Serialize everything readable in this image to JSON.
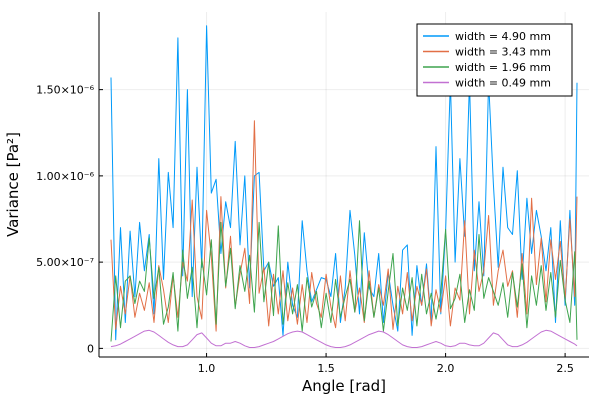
{
  "chart_data": {
    "type": "line",
    "xlabel": "Angle [rad]",
    "ylabel": "Variance [Pa²]",
    "xlim": [
      0.55,
      2.6
    ],
    "ylim": [
      -5e-08,
      1.95e-06
    ],
    "xticks": [
      {
        "value": 1.0,
        "label": "1.0"
      },
      {
        "value": 1.5,
        "label": "1.5"
      },
      {
        "value": 2.0,
        "label": "2.0"
      },
      {
        "value": 2.5,
        "label": "2.5"
      }
    ],
    "yticks": [
      {
        "value": 0,
        "label": "0"
      },
      {
        "value": 5e-07,
        "label": "5.00×10⁻⁷"
      },
      {
        "value": 1e-06,
        "label": "1.00×10⁻⁶"
      },
      {
        "value": 1.5e-06,
        "label": "1.50×10⁻⁶"
      }
    ],
    "grid": true,
    "legend_position": "top-right",
    "x": [
      0.6,
      0.62,
      0.64,
      0.66,
      0.68,
      0.7,
      0.72,
      0.74,
      0.76,
      0.78,
      0.8,
      0.82,
      0.84,
      0.86,
      0.88,
      0.9,
      0.92,
      0.94,
      0.96,
      0.98,
      1.0,
      1.02,
      1.04,
      1.06,
      1.08,
      1.1,
      1.12,
      1.14,
      1.16,
      1.18,
      1.2,
      1.22,
      1.24,
      1.26,
      1.28,
      1.3,
      1.32,
      1.34,
      1.36,
      1.38,
      1.4,
      1.42,
      1.44,
      1.46,
      1.48,
      1.5,
      1.52,
      1.54,
      1.56,
      1.58,
      1.6,
      1.62,
      1.64,
      1.66,
      1.68,
      1.7,
      1.72,
      1.74,
      1.76,
      1.78,
      1.8,
      1.82,
      1.84,
      1.86,
      1.88,
      1.9,
      1.92,
      1.94,
      1.96,
      1.98,
      2.0,
      2.02,
      2.04,
      2.06,
      2.08,
      2.1,
      2.12,
      2.14,
      2.16,
      2.18,
      2.2,
      2.22,
      2.24,
      2.26,
      2.28,
      2.3,
      2.32,
      2.34,
      2.36,
      2.38,
      2.4,
      2.42,
      2.44,
      2.46,
      2.48,
      2.5,
      2.52,
      2.54,
      2.55
    ],
    "series": [
      {
        "name": "width = 4.90 mm",
        "color": "#009AFA",
        "values": [
          1.57e-06,
          5e-08,
          7e-07,
          1.5e-07,
          6.8e-07,
          3e-07,
          7.3e-07,
          4.5e-07,
          6.6e-07,
          2e-07,
          1.1e-06,
          4e-07,
          1.02e-06,
          7e-07,
          1.8e-06,
          4.2e-07,
          1.5e-06,
          3e-07,
          1.05e-06,
          4.7e-07,
          1.87e-06,
          9e-07,
          9.8e-07,
          5.5e-07,
          8.5e-07,
          7e-07,
          1.2e-06,
          6e-07,
          1e-06,
          3.5e-07,
          1e-06,
          1.02e-06,
          4.5e-07,
          5e-07,
          3.6e-07,
          4.1e-07,
          7.5e-08,
          5e-07,
          2.5e-07,
          1.8e-07,
          7.4e-07,
          4.5e-07,
          2.7e-07,
          3.4e-07,
          4.1e-07,
          4e-07,
          3e-07,
          5.5e-07,
          1.5e-07,
          3.5e-07,
          8e-07,
          5.4e-07,
          2e-07,
          6.7e-07,
          3.5e-07,
          3e-07,
          5.5e-07,
          1.5e-07,
          4.4e-07,
          2.5e-07,
          1e-07,
          5.7e-07,
          6e-07,
          7.5e-08,
          4.8e-07,
          2.5e-07,
          4.9e-07,
          1.5e-07,
          1.17e-06,
          2e-07,
          6.8e-07,
          1.55e-06,
          5e-07,
          1.1e-06,
          6.5e-07,
          1.55e-06,
          4.5e-07,
          8.5e-07,
          4.2e-07,
          1.55e-06,
          9.5e-07,
          4.7e-07,
          1.05e-06,
          7e-07,
          6.6e-07,
          1.03e-06,
          4e-07,
          8.7e-07,
          5.5e-07,
          8e-07,
          6.5e-07,
          4.5e-07,
          7e-07,
          1.5e-07,
          7.4e-07,
          2.5e-07,
          8e-07,
          2.5e-07,
          1.54e-06
        ]
      },
      {
        "name": "width = 3.43 mm",
        "color": "#E26F46",
        "values": [
          6.3e-07,
          1.1e-07,
          3.6e-07,
          2e-07,
          4.2e-07,
          1.8e-07,
          3.2e-07,
          2.2e-07,
          3.8e-07,
          1.5e-07,
          4.8e-07,
          3.4e-07,
          1.5e-07,
          4.2e-07,
          1.8e-07,
          5e-07,
          3.9e-07,
          8.6e-07,
          3e-07,
          1.7e-07,
          8e-07,
          5.3e-07,
          1e-07,
          8.8e-07,
          3.5e-07,
          6.5e-07,
          2.4e-07,
          4.3e-07,
          5.8e-07,
          2.6e-07,
          1.32e-06,
          3.2e-07,
          4.7e-07,
          1.3e-07,
          4.3e-07,
          2e-07,
          4.5e-07,
          1.6e-07,
          3.5e-07,
          1.4e-07,
          3.7e-07,
          1.5e-07,
          4.4e-07,
          2.6e-07,
          1.8e-07,
          4.3e-07,
          2.4e-07,
          1.2e-07,
          4.2e-07,
          1.6e-07,
          4.5e-07,
          2.1e-07,
          3.5e-07,
          1.5e-07,
          4.5e-07,
          1.8e-07,
          3.7e-07,
          2.5e-07,
          4.6e-07,
          1.1e-07,
          3.6e-07,
          2e-07,
          4.4e-07,
          1.6e-07,
          3.6e-07,
          2.5e-07,
          4.6e-07,
          1.3e-07,
          3.4e-07,
          2.1e-07,
          4.2e-07,
          1.3e-07,
          3.5e-07,
          2.8e-07,
          7.4e-07,
          2e-07,
          5.7e-07,
          3.3e-07,
          4.5e-07,
          7.7e-07,
          2.5e-07,
          4.5e-07,
          5.7e-07,
          3.6e-07,
          4.5e-07,
          1.8e-07,
          5.5e-07,
          2e-07,
          8.7e-07,
          3.7e-07,
          6.4e-07,
          2.7e-07,
          6.3e-07,
          4e-07,
          6.2e-07,
          2.8e-07,
          7.5e-07,
          3e-07,
          8.8e-07
        ]
      },
      {
        "name": "width = 1.96 mm",
        "color": "#3EA44E",
        "values": [
          4e-08,
          4.2e-07,
          1.2e-07,
          3.9e-07,
          4.2e-07,
          2.6e-07,
          3.9e-07,
          3.3e-07,
          6.4e-07,
          2.9e-07,
          4.7e-07,
          1.4e-07,
          2.4e-07,
          4.4e-07,
          1e-07,
          5.7e-07,
          2.9e-07,
          4.7e-07,
          1.2e-07,
          5.2e-07,
          3.1e-07,
          6.3e-07,
          1.4e-07,
          7.3e-07,
          3.6e-07,
          5.8e-07,
          2.3e-07,
          4.8e-07,
          3.3e-07,
          5.4e-07,
          2.1e-07,
          7.3e-07,
          2.7e-07,
          5e-07,
          1.9e-07,
          7.1e-07,
          1.4e-07,
          3.8e-07,
          2e-07,
          3.7e-07,
          1e-07,
          4.1e-07,
          2.4e-07,
          3.3e-07,
          1.2e-07,
          3.2e-07,
          1.5e-07,
          4e-07,
          1.8e-07,
          3e-07,
          4e-07,
          2.1e-07,
          7.4e-07,
          1.6e-07,
          3.9e-07,
          1.8e-07,
          3.5e-07,
          1e-07,
          3.3e-07,
          5.5e-07,
          1.3e-07,
          3.5e-07,
          2.2e-07,
          4.1e-07,
          1.3e-07,
          4.3e-07,
          2e-07,
          3.2e-07,
          1.7e-07,
          3.2e-07,
          6.9e-07,
          2.3e-07,
          2.9e-07,
          4.3e-07,
          1.5e-07,
          3.4e-07,
          2.2e-07,
          6.6e-07,
          2.9e-07,
          4.1e-07,
          3.3e-07,
          2.5e-07,
          3.8e-07,
          1.8e-07,
          4.4e-07,
          2.4e-07,
          4.9e-07,
          1.2e-07,
          4.2e-07,
          2.5e-07,
          4.8e-07,
          2.2e-07,
          4.4e-07,
          1.8e-07,
          5.1e-07,
          2.8e-07,
          1.5e-07,
          5.6e-07,
          5e-08
        ]
      },
      {
        "name": "width = 0.49 mm",
        "color": "#C271D2",
        "values": [
          1e-08,
          1.5e-08,
          2.5e-08,
          4e-08,
          5.5e-08,
          7e-08,
          8.5e-08,
          1e-07,
          1.05e-07,
          9.5e-08,
          7.5e-08,
          5.5e-08,
          3.5e-08,
          2e-08,
          1e-08,
          1e-08,
          2e-08,
          5e-08,
          8e-08,
          9e-08,
          6e-08,
          3e-08,
          1.5e-08,
          1.5e-08,
          3e-08,
          3e-08,
          4e-08,
          3e-08,
          1.5e-08,
          5e-09,
          5e-09,
          1e-08,
          2e-08,
          3e-08,
          4e-08,
          5.5e-08,
          7e-08,
          8.5e-08,
          9.5e-08,
          1e-07,
          9.5e-08,
          8e-08,
          6.5e-08,
          5e-08,
          3.5e-08,
          2e-08,
          1e-08,
          5e-09,
          5e-09,
          1e-08,
          2e-08,
          3.5e-08,
          5e-08,
          6.5e-08,
          8e-08,
          9e-08,
          1e-07,
          9.5e-08,
          8e-08,
          6e-08,
          4e-08,
          2e-08,
          1e-08,
          5e-09,
          5e-09,
          1e-08,
          2e-08,
          3e-08,
          4e-08,
          3e-08,
          1.5e-08,
          1e-08,
          1.5e-08,
          3e-08,
          3e-08,
          2e-08,
          1.5e-08,
          1.5e-08,
          3e-08,
          6e-08,
          9e-08,
          8e-08,
          5e-08,
          2e-08,
          1e-08,
          1e-08,
          2e-08,
          3.5e-08,
          5.5e-08,
          7.5e-08,
          9.5e-08,
          1.05e-07,
          1e-07,
          8.5e-08,
          7e-08,
          5.5e-08,
          4e-08,
          2.5e-08,
          1.5e-08
        ]
      }
    ]
  }
}
